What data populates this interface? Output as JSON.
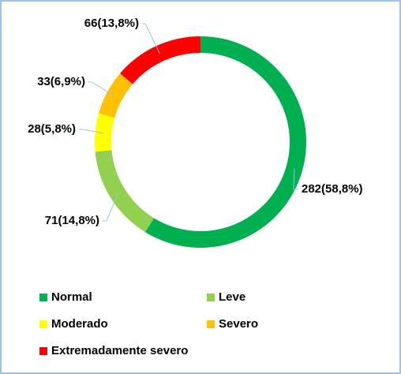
{
  "chart_data": {
    "type": "donut",
    "categories": [
      "Normal",
      "Leve",
      "Moderado",
      "Severo",
      "Extremadamente severo"
    ],
    "values": [
      282,
      71,
      28,
      33,
      66
    ],
    "value_labels": [
      "282(58,8%)",
      "71(14,8%)",
      "28(5,8%)",
      "33(6,9%)",
      "66(13,8%)"
    ],
    "colors": [
      "#00b050",
      "#92d050",
      "#ffff00",
      "#ffc000",
      "#ff0000"
    ],
    "legend": "bottom"
  }
}
